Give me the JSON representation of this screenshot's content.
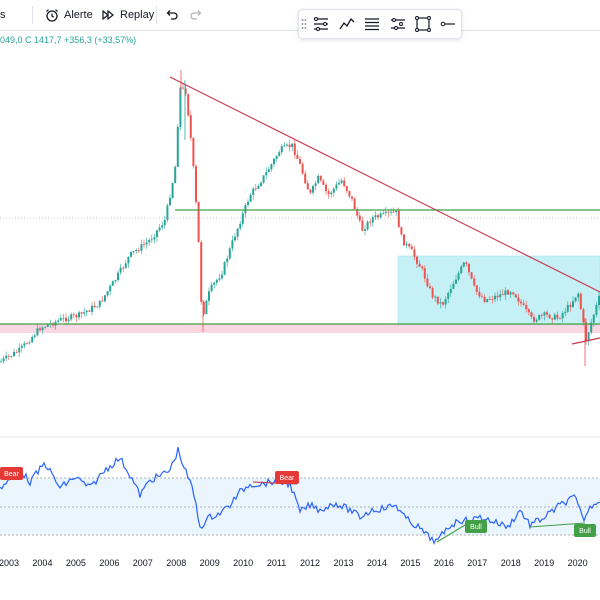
{
  "toolbar": {
    "left_fragment": "s",
    "alert_label": "Alerte",
    "replay_label": "Replay"
  },
  "legend": {
    "ohlc_text": "049,0  C 1417,7  +356,3 (+33,57%)"
  },
  "drawing_toolbar": {
    "tools": [
      "multi-line-tool-icon",
      "trend-path-icon",
      "lines-list-icon",
      "parallel-lines-icon",
      "rectangle-tool-icon",
      "horizontal-ray-icon"
    ]
  },
  "colors": {
    "up": "#26a69a",
    "down": "#ef5350",
    "trendline": "#c2394f",
    "hline": "#43a047",
    "rsi": "#2962ff",
    "box": "#b2ebf2"
  },
  "rsi": {
    "bear_label": "Bear",
    "bull_label": "Bull"
  },
  "chart_data": {
    "type": "candlestick",
    "x_axis_labels": [
      "2003",
      "2004",
      "2005",
      "2006",
      "2007",
      "2008",
      "2009",
      "2010",
      "2011",
      "2012",
      "2013",
      "2014",
      "2015",
      "2016",
      "2017",
      "2018",
      "2019",
      "2020"
    ],
    "annotations": [
      "Bear",
      "Bear",
      "Bull",
      "Bull"
    ]
  }
}
